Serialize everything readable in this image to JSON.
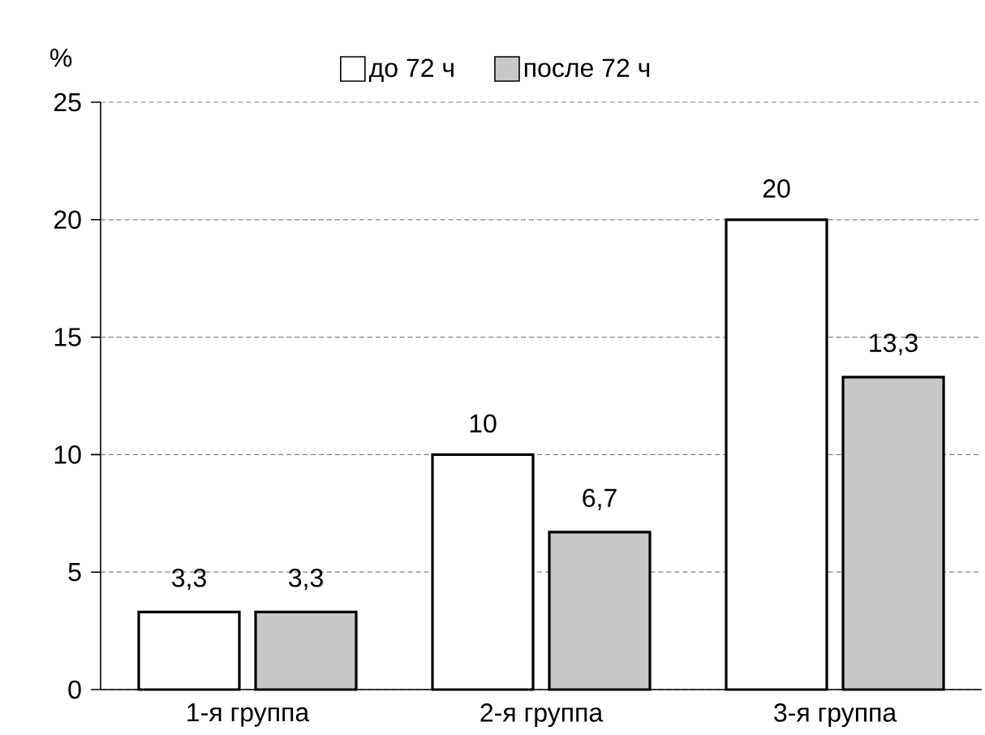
{
  "chart_data": {
    "type": "bar",
    "ylabel": "%",
    "categories": [
      "1-я группа",
      "2-я группа",
      "3-я группа"
    ],
    "series": [
      {
        "name": "до 72 ч",
        "color": "#ffffff",
        "values": [
          3.3,
          10,
          20
        ],
        "value_labels": [
          "3,3",
          "10",
          "20"
        ]
      },
      {
        "name": "после 72 ч",
        "color": "#c8c8c8",
        "values": [
          3.3,
          6.7,
          13.3
        ],
        "value_labels": [
          "3,3",
          "6,7",
          "13,3"
        ]
      }
    ],
    "ylim": [
      0,
      25
    ],
    "yticks": [
      0,
      5,
      10,
      15,
      20,
      25
    ],
    "grid": "y",
    "legend": "top"
  }
}
